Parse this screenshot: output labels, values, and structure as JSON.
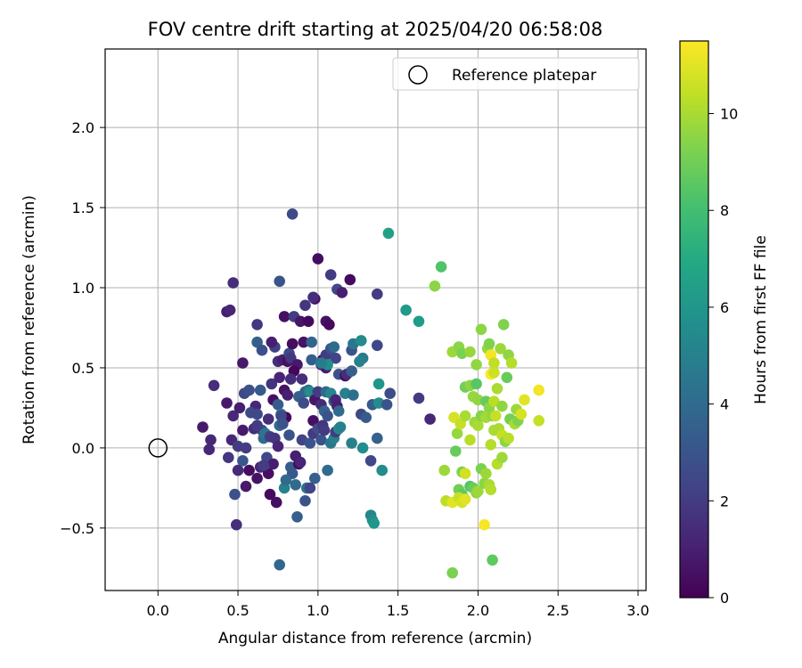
{
  "chart_data": {
    "type": "scatter",
    "title": "FOV centre drift starting at 2025/04/20 06:58:08",
    "xlabel": "Angular distance from reference (arcmin)",
    "ylabel": "Rotation from reference (arcmin)",
    "xlim": [
      -0.33,
      3.05
    ],
    "ylim": [
      -0.89,
      2.49
    ],
    "xticks": [
      0.0,
      0.5,
      1.0,
      1.5,
      2.0,
      2.5,
      3.0
    ],
    "xtick_labels": [
      "0.0",
      "0.5",
      "1.0",
      "1.5",
      "2.0",
      "2.5",
      "3.0"
    ],
    "yticks": [
      -0.5,
      0.0,
      0.5,
      1.0,
      1.5,
      2.0
    ],
    "ytick_labels": [
      "−0.5",
      "0.0",
      "0.5",
      "1.0",
      "1.5",
      "2.0"
    ],
    "grid": true,
    "legend": {
      "placement": "top-right",
      "label": "Reference platepar"
    },
    "reference_point": {
      "x": 0.0,
      "y": 0.0
    },
    "colorbar": {
      "label": "Hours from first FF file",
      "colormap": "viridis",
      "range": [
        0,
        11.5
      ],
      "ticks": [
        0,
        2,
        4,
        6,
        8,
        10
      ],
      "tick_labels": [
        "0",
        "2",
        "4",
        "6",
        "8",
        "10"
      ]
    },
    "points": [
      [
        0.84,
        1.46,
        2.5
      ],
      [
        0.76,
        1.04,
        3.0
      ],
      [
        0.47,
        1.03,
        1.5
      ],
      [
        0.43,
        0.85,
        1.0
      ],
      [
        0.45,
        0.86,
        1.2
      ],
      [
        0.62,
        0.77,
        1.8
      ],
      [
        0.73,
        0.63,
        2.2
      ],
      [
        0.62,
        0.66,
        3.5
      ],
      [
        0.65,
        0.61,
        2.8
      ],
      [
        0.71,
        0.66,
        1.0
      ],
      [
        0.79,
        0.82,
        0.5
      ],
      [
        0.85,
        0.82,
        2.0
      ],
      [
        0.89,
        0.79,
        0.7
      ],
      [
        0.94,
        0.79,
        0.3
      ],
      [
        1.0,
        1.18,
        0.4
      ],
      [
        1.05,
        0.79,
        0.6
      ],
      [
        1.07,
        0.77,
        0.3
      ],
      [
        0.98,
        0.93,
        0.5
      ],
      [
        0.97,
        0.94,
        1.5
      ],
      [
        1.08,
        1.08,
        2.0
      ],
      [
        1.12,
        0.99,
        2.5
      ],
      [
        1.15,
        0.97,
        1.0
      ],
      [
        1.2,
        1.05,
        0.3
      ],
      [
        1.37,
        0.96,
        2.0
      ],
      [
        1.44,
        1.34,
        6.5
      ],
      [
        1.55,
        0.86,
        6.2
      ],
      [
        1.63,
        0.79,
        6.3
      ],
      [
        0.92,
        0.89,
        1.8
      ],
      [
        0.75,
        0.54,
        1.5
      ],
      [
        0.78,
        0.55,
        1.0
      ],
      [
        0.81,
        0.54,
        0.5
      ],
      [
        0.82,
        0.59,
        2.5
      ],
      [
        0.83,
        0.56,
        1.8
      ],
      [
        0.84,
        0.65,
        0.4
      ],
      [
        0.87,
        0.52,
        0.8
      ],
      [
        0.85,
        0.48,
        0.2
      ],
      [
        0.9,
        0.43,
        1.5
      ],
      [
        0.91,
        0.66,
        0.6
      ],
      [
        0.96,
        0.55,
        3.4
      ],
      [
        0.96,
        0.66,
        3.7
      ],
      [
        1.02,
        0.52,
        1.5
      ],
      [
        1.03,
        0.55,
        0.3
      ],
      [
        1.05,
        0.5,
        0.9
      ],
      [
        1.05,
        0.58,
        2.0
      ],
      [
        1.08,
        0.62,
        3.0
      ],
      [
        1.1,
        0.63,
        4.0
      ],
      [
        1.11,
        0.56,
        2.3
      ],
      [
        1.13,
        0.46,
        3.0
      ],
      [
        1.17,
        0.45,
        0.5
      ],
      [
        1.18,
        0.46,
        1.5
      ],
      [
        1.21,
        0.61,
        3.0
      ],
      [
        1.22,
        0.65,
        4.5
      ],
      [
        1.21,
        0.48,
        3.5
      ],
      [
        1.27,
        0.67,
        5.5
      ],
      [
        1.28,
        0.56,
        4.7
      ],
      [
        1.26,
        0.54,
        5.0
      ],
      [
        1.37,
        0.64,
        2.5
      ],
      [
        1.06,
        0.52,
        5.6
      ],
      [
        1.02,
        0.53,
        4.8
      ],
      [
        0.35,
        0.39,
        1.5
      ],
      [
        0.43,
        0.28,
        0.8
      ],
      [
        0.47,
        0.2,
        1.3
      ],
      [
        0.51,
        0.25,
        1.0
      ],
      [
        0.53,
        0.53,
        0.8
      ],
      [
        0.54,
        0.34,
        2.5
      ],
      [
        0.57,
        0.36,
        2.8
      ],
      [
        0.61,
        0.26,
        1.3
      ],
      [
        0.62,
        0.21,
        2.5
      ],
      [
        0.64,
        0.36,
        3.2
      ],
      [
        0.65,
        0.11,
        2.7
      ],
      [
        0.69,
        0.18,
        1.5
      ],
      [
        0.71,
        0.4,
        1.7
      ],
      [
        0.72,
        0.3,
        0.5
      ],
      [
        0.75,
        0.27,
        3.3
      ],
      [
        0.76,
        0.44,
        1.2
      ],
      [
        0.77,
        0.21,
        4.7
      ],
      [
        0.79,
        0.36,
        0.6
      ],
      [
        0.8,
        0.19,
        0.2
      ],
      [
        0.81,
        0.33,
        1.0
      ],
      [
        0.83,
        0.43,
        1.5
      ],
      [
        0.88,
        0.32,
        3.5
      ],
      [
        0.91,
        0.28,
        2.7
      ],
      [
        0.92,
        0.35,
        3.6
      ],
      [
        0.94,
        0.36,
        4.0
      ],
      [
        0.95,
        0.35,
        5.5
      ],
      [
        0.97,
        0.17,
        0.5
      ],
      [
        0.98,
        0.3,
        0.7
      ],
      [
        1.0,
        0.35,
        2.0
      ],
      [
        1.02,
        0.27,
        1.4
      ],
      [
        1.04,
        0.23,
        3.6
      ],
      [
        1.05,
        0.35,
        4.0
      ],
      [
        1.06,
        0.2,
        3.0
      ],
      [
        1.08,
        0.34,
        5.3
      ],
      [
        1.1,
        0.29,
        3.6
      ],
      [
        1.11,
        0.3,
        1.2
      ],
      [
        1.12,
        0.26,
        1.0
      ],
      [
        1.13,
        0.23,
        4.0
      ],
      [
        1.17,
        0.34,
        5.0
      ],
      [
        1.22,
        0.33,
        4.2
      ],
      [
        1.27,
        0.21,
        2.5
      ],
      [
        1.3,
        0.19,
        3.3
      ],
      [
        1.34,
        0.27,
        3.3
      ],
      [
        1.38,
        0.28,
        5.5
      ],
      [
        1.38,
        0.4,
        6.0
      ],
      [
        1.43,
        0.27,
        3.0
      ],
      [
        1.45,
        0.34,
        2.7
      ],
      [
        1.63,
        0.31,
        2.0
      ],
      [
        1.7,
        0.18,
        1.3
      ],
      [
        0.28,
        0.13,
        0.8
      ],
      [
        0.32,
        -0.01,
        1.3
      ],
      [
        0.33,
        0.05,
        1.3
      ],
      [
        0.44,
        -0.06,
        1.8
      ],
      [
        0.46,
        0.05,
        1.3
      ],
      [
        0.5,
        0.01,
        2.0
      ],
      [
        0.5,
        -0.14,
        1.4
      ],
      [
        0.53,
        -0.08,
        3.1
      ],
      [
        0.53,
        0.11,
        0.8
      ],
      [
        0.55,
        0.0,
        2.0
      ],
      [
        0.57,
        -0.14,
        0.4
      ],
      [
        0.58,
        0.22,
        2.5
      ],
      [
        0.6,
        0.12,
        1.5
      ],
      [
        0.62,
        0.14,
        2.0
      ],
      [
        0.64,
        -0.12,
        1.3
      ],
      [
        0.66,
        0.06,
        4.0
      ],
      [
        0.67,
        0.09,
        4.5
      ],
      [
        0.68,
        -0.06,
        2.5
      ],
      [
        0.69,
        -0.16,
        0.5
      ],
      [
        0.7,
        0.07,
        2.0
      ],
      [
        0.72,
        -0.1,
        1.0
      ],
      [
        0.73,
        0.06,
        1.8
      ],
      [
        0.75,
        0.01,
        1.2
      ],
      [
        0.76,
        0.14,
        4.0
      ],
      [
        0.77,
        0.2,
        2.5
      ],
      [
        0.78,
        0.15,
        2.9
      ],
      [
        0.79,
        -0.25,
        5.0
      ],
      [
        0.82,
        0.08,
        3.0
      ],
      [
        0.83,
        -0.12,
        3.4
      ],
      [
        0.84,
        -0.16,
        3.2
      ],
      [
        0.86,
        -0.23,
        4.0
      ],
      [
        0.86,
        -0.05,
        1.0
      ],
      [
        0.88,
        -0.1,
        0.3
      ],
      [
        0.89,
        -0.09,
        1.2
      ],
      [
        0.9,
        0.05,
        2.3
      ],
      [
        0.93,
        -0.25,
        4.2
      ],
      [
        0.95,
        0.03,
        3.0
      ],
      [
        0.97,
        0.09,
        2.0
      ],
      [
        0.98,
        -0.19,
        3.5
      ],
      [
        1.0,
        0.12,
        2.7
      ],
      [
        1.02,
        0.05,
        3.0
      ],
      [
        1.03,
        0.14,
        1.8
      ],
      [
        1.04,
        0.11,
        2.0
      ],
      [
        1.06,
        -0.14,
        4.0
      ],
      [
        1.08,
        0.03,
        4.5
      ],
      [
        1.1,
        0.06,
        5.0
      ],
      [
        1.11,
        0.1,
        2.0
      ],
      [
        1.13,
        0.12,
        5.5
      ],
      [
        1.14,
        0.13,
        5.0
      ],
      [
        1.21,
        0.03,
        5.0
      ],
      [
        1.28,
        0.0,
        5.5
      ],
      [
        1.33,
        -0.08,
        2.5
      ],
      [
        1.37,
        0.06,
        3.6
      ],
      [
        1.4,
        -0.14,
        5.5
      ],
      [
        0.49,
        -0.48,
        1.5
      ],
      [
        0.48,
        -0.29,
        2.8
      ],
      [
        0.55,
        -0.24,
        0.8
      ],
      [
        0.62,
        -0.19,
        0.6
      ],
      [
        0.66,
        -0.11,
        2.0
      ],
      [
        0.7,
        -0.29,
        0.3
      ],
      [
        0.74,
        -0.34,
        0.5
      ],
      [
        0.76,
        -0.73,
        3.8
      ],
      [
        0.8,
        -0.2,
        4.0
      ],
      [
        0.87,
        -0.43,
        3.5
      ],
      [
        0.92,
        -0.33,
        3.0
      ],
      [
        0.95,
        -0.25,
        2.3
      ],
      [
        1.33,
        -0.42,
        5.3
      ],
      [
        1.34,
        -0.45,
        5.6
      ],
      [
        1.35,
        -0.47,
        6.0
      ],
      [
        1.73,
        1.01,
        9.5
      ],
      [
        1.77,
        1.13,
        8.3
      ],
      [
        1.84,
        0.6,
        9.8
      ],
      [
        1.88,
        0.63,
        9.5
      ],
      [
        1.9,
        0.59,
        9.2
      ],
      [
        1.95,
        0.6,
        9.7
      ],
      [
        1.99,
        0.52,
        9.6
      ],
      [
        2.02,
        0.74,
        9.5
      ],
      [
        2.06,
        0.62,
        9.7
      ],
      [
        2.07,
        0.65,
        9.3
      ],
      [
        2.08,
        0.58,
        11.3
      ],
      [
        2.1,
        0.53,
        10.4
      ],
      [
        2.14,
        0.62,
        9.8
      ],
      [
        2.16,
        0.77,
        9.3
      ],
      [
        2.19,
        0.58,
        9.6
      ],
      [
        2.21,
        0.53,
        10.2
      ],
      [
        2.08,
        0.46,
        11.5
      ],
      [
        1.92,
        0.38,
        9.0
      ],
      [
        1.95,
        0.39,
        9.5
      ],
      [
        1.97,
        0.32,
        9.7
      ],
      [
        1.99,
        0.4,
        8.5
      ],
      [
        2.0,
        0.3,
        9.6
      ],
      [
        2.05,
        0.29,
        8.8
      ],
      [
        2.07,
        0.25,
        9.5
      ],
      [
        2.1,
        0.29,
        10.3
      ],
      [
        2.1,
        0.47,
        10.6
      ],
      [
        2.12,
        0.37,
        10.0
      ],
      [
        2.15,
        0.26,
        9.6
      ],
      [
        2.18,
        0.44,
        8.8
      ],
      [
        2.2,
        0.18,
        9.1
      ],
      [
        2.23,
        0.15,
        10.0
      ],
      [
        2.24,
        0.24,
        9.8
      ],
      [
        2.25,
        0.17,
        9.3
      ],
      [
        2.27,
        0.21,
        10.8
      ],
      [
        2.29,
        0.3,
        11.0
      ],
      [
        2.38,
        0.36,
        11.3
      ],
      [
        2.38,
        0.17,
        10.5
      ],
      [
        1.85,
        0.19,
        10.8
      ],
      [
        1.87,
        0.09,
        9.7
      ],
      [
        1.89,
        0.15,
        10.5
      ],
      [
        1.92,
        0.2,
        10.0
      ],
      [
        1.95,
        0.05,
        10.3
      ],
      [
        1.98,
        0.16,
        9.8
      ],
      [
        2.0,
        0.14,
        10.0
      ],
      [
        2.02,
        0.2,
        9.4
      ],
      [
        2.05,
        0.19,
        9.9
      ],
      [
        2.09,
        0.2,
        9.6
      ],
      [
        2.1,
        0.11,
        10.0
      ],
      [
        2.11,
        0.2,
        10.5
      ],
      [
        2.13,
        0.12,
        10.0
      ],
      [
        2.15,
        0.08,
        10.5
      ],
      [
        2.17,
        0.04,
        9.5
      ],
      [
        2.19,
        0.06,
        10.3
      ],
      [
        2.08,
        0.02,
        10.2
      ],
      [
        2.12,
        -0.1,
        10.2
      ],
      [
        2.15,
        -0.06,
        9.8
      ],
      [
        1.79,
        -0.14,
        9.8
      ],
      [
        1.86,
        -0.02,
        8.8
      ],
      [
        1.9,
        -0.15,
        9.3
      ],
      [
        1.92,
        -0.16,
        10.7
      ],
      [
        1.88,
        -0.26,
        9.0
      ],
      [
        1.9,
        -0.29,
        8.6
      ],
      [
        1.95,
        -0.24,
        8.4
      ],
      [
        1.97,
        -0.25,
        8.9
      ],
      [
        1.99,
        -0.28,
        9.5
      ],
      [
        2.0,
        -0.27,
        9.8
      ],
      [
        2.02,
        -0.13,
        9.2
      ],
      [
        2.04,
        -0.22,
        9.5
      ],
      [
        2.05,
        -0.16,
        9.8
      ],
      [
        2.07,
        -0.23,
        10.0
      ],
      [
        2.08,
        -0.26,
        10.2
      ],
      [
        1.8,
        -0.33,
        10.3
      ],
      [
        1.84,
        -0.34,
        11.0
      ],
      [
        1.88,
        -0.31,
        10.5
      ],
      [
        1.9,
        -0.34,
        10.8
      ],
      [
        1.92,
        -0.32,
        11.0
      ],
      [
        2.04,
        -0.48,
        11.4
      ],
      [
        1.84,
        -0.78,
        9.2
      ],
      [
        2.09,
        -0.7,
        8.6
      ]
    ]
  }
}
